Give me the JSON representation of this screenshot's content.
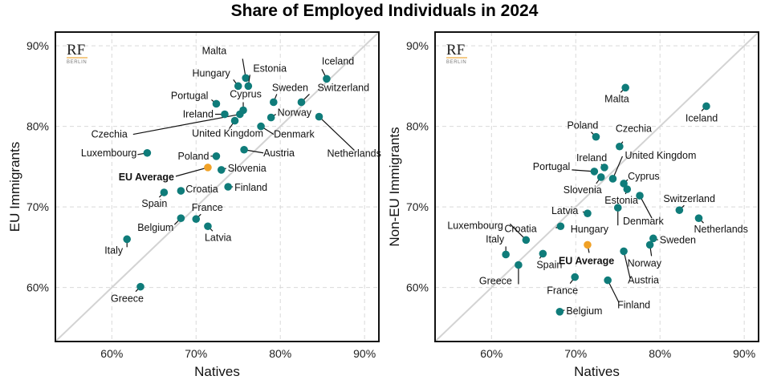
{
  "chart_data": {
    "title": "Share of Employed Individuals in 2024",
    "colors": {
      "country": "#0f7c7a",
      "eu_average": "#f0a126",
      "diagonal": "#d3d3d3",
      "grid": "#d9d9d9"
    },
    "logo": {
      "main": "RF",
      "sub": "BERLIN",
      "accent": "#f0b860"
    },
    "panels": [
      {
        "type": "scatter",
        "xlabel": "Natives",
        "ylabel": "EU Immigrants",
        "xlim": [
          53.3,
          91.7
        ],
        "ylim": [
          53.3,
          91.7
        ],
        "xticks": [
          60,
          70,
          80,
          90
        ],
        "yticks": [
          60,
          70,
          80,
          90
        ],
        "xtick_labels": [
          "60%",
          "70%",
          "80%",
          "90%"
        ],
        "ytick_labels": [
          "60%",
          "70%",
          "80%",
          "90%"
        ],
        "grid": true,
        "diagonal": "45-degree line",
        "points": [
          {
            "label": "Malta",
            "x": 75.9,
            "y": 86.0
          },
          {
            "label": "Hungary",
            "x": 75.0,
            "y": 85.0
          },
          {
            "label": "Estonia",
            "x": 76.2,
            "y": 85.0
          },
          {
            "label": "Iceland",
            "x": 85.5,
            "y": 85.9
          },
          {
            "label": "Sweden",
            "x": 79.2,
            "y": 83.0
          },
          {
            "label": "Switzerland",
            "x": 82.5,
            "y": 83.0
          },
          {
            "label": "Portugal",
            "x": 72.4,
            "y": 82.8
          },
          {
            "label": "Cyprus",
            "x": 75.6,
            "y": 82.0
          },
          {
            "label": "Czechia",
            "x": 75.2,
            "y": 81.5
          },
          {
            "label": "Ireland",
            "x": 73.4,
            "y": 81.5
          },
          {
            "label": "Norway",
            "x": 78.9,
            "y": 81.1
          },
          {
            "label": "Netherlands",
            "x": 84.6,
            "y": 81.2
          },
          {
            "label": "United Kingdom",
            "x": 74.6,
            "y": 80.7
          },
          {
            "label": "Denmark",
            "x": 77.7,
            "y": 80.0
          },
          {
            "label": "Austria",
            "x": 75.7,
            "y": 77.1
          },
          {
            "label": "Luxembourg",
            "x": 64.2,
            "y": 76.7
          },
          {
            "label": "Poland",
            "x": 72.4,
            "y": 76.3
          },
          {
            "label": "EU Average",
            "x": 71.4,
            "y": 74.9,
            "highlight": true
          },
          {
            "label": "Slovenia",
            "x": 73.0,
            "y": 74.6
          },
          {
            "label": "Spain",
            "x": 66.2,
            "y": 71.8
          },
          {
            "label": "Croatia",
            "x": 68.2,
            "y": 72.0
          },
          {
            "label": "Finland",
            "x": 73.8,
            "y": 72.5
          },
          {
            "label": "Belgium",
            "x": 68.2,
            "y": 68.6
          },
          {
            "label": "France",
            "x": 70.0,
            "y": 68.5
          },
          {
            "label": "Latvia",
            "x": 71.4,
            "y": 67.6
          },
          {
            "label": "Italy",
            "x": 61.8,
            "y": 66.0
          },
          {
            "label": "Greece",
            "x": 63.4,
            "y": 60.1
          }
        ]
      },
      {
        "type": "scatter",
        "xlabel": "Natives",
        "ylabel": "Non-EU Immigrants",
        "xlim": [
          53.3,
          91.7
        ],
        "ylim": [
          53.3,
          91.7
        ],
        "xticks": [
          60,
          70,
          80,
          90
        ],
        "yticks": [
          60,
          70,
          80,
          90
        ],
        "xtick_labels": [
          "60%",
          "70%",
          "80%",
          "90%"
        ],
        "ytick_labels": [
          "60%",
          "70%",
          "80%",
          "90%"
        ],
        "grid": true,
        "diagonal": "45-degree line",
        "points": [
          {
            "label": "Malta",
            "x": 75.9,
            "y": 84.8
          },
          {
            "label": "Iceland",
            "x": 85.5,
            "y": 82.5
          },
          {
            "label": "Poland",
            "x": 72.4,
            "y": 78.7
          },
          {
            "label": "Czechia",
            "x": 75.2,
            "y": 77.5
          },
          {
            "label": "Ireland",
            "x": 73.4,
            "y": 74.9
          },
          {
            "label": "Portugal",
            "x": 72.2,
            "y": 74.4
          },
          {
            "label": "Slovenia",
            "x": 73.0,
            "y": 73.7
          },
          {
            "label": "United Kingdom",
            "x": 74.4,
            "y": 73.5
          },
          {
            "label": "Cyprus",
            "x": 75.7,
            "y": 72.9
          },
          {
            "label": "Estonia",
            "x": 76.1,
            "y": 72.2
          },
          {
            "label": "Denmark",
            "x": 77.6,
            "y": 71.4
          },
          {
            "label": "Hungary",
            "x": 75.0,
            "y": 69.9
          },
          {
            "label": "Latvia",
            "x": 71.4,
            "y": 69.2
          },
          {
            "label": "Switzerland",
            "x": 82.3,
            "y": 69.6
          },
          {
            "label": "Netherlands",
            "x": 84.6,
            "y": 68.6
          },
          {
            "label": "Croatia",
            "x": 68.2,
            "y": 67.6
          },
          {
            "label": "Luxembourg",
            "x": 64.1,
            "y": 65.9
          },
          {
            "label": "Sweden",
            "x": 79.2,
            "y": 66.1
          },
          {
            "label": "Norway",
            "x": 78.8,
            "y": 65.3
          },
          {
            "label": "EU Average",
            "x": 71.4,
            "y": 65.3,
            "highlight": true
          },
          {
            "label": "Austria",
            "x": 75.7,
            "y": 64.5
          },
          {
            "label": "Italy",
            "x": 61.7,
            "y": 64.1
          },
          {
            "label": "Spain",
            "x": 66.1,
            "y": 64.2
          },
          {
            "label": "Greece",
            "x": 63.2,
            "y": 62.8
          },
          {
            "label": "France",
            "x": 69.9,
            "y": 61.3
          },
          {
            "label": "Finland",
            "x": 73.8,
            "y": 60.9
          },
          {
            "label": "Belgium",
            "x": 68.1,
            "y": 57.0
          }
        ]
      }
    ]
  }
}
